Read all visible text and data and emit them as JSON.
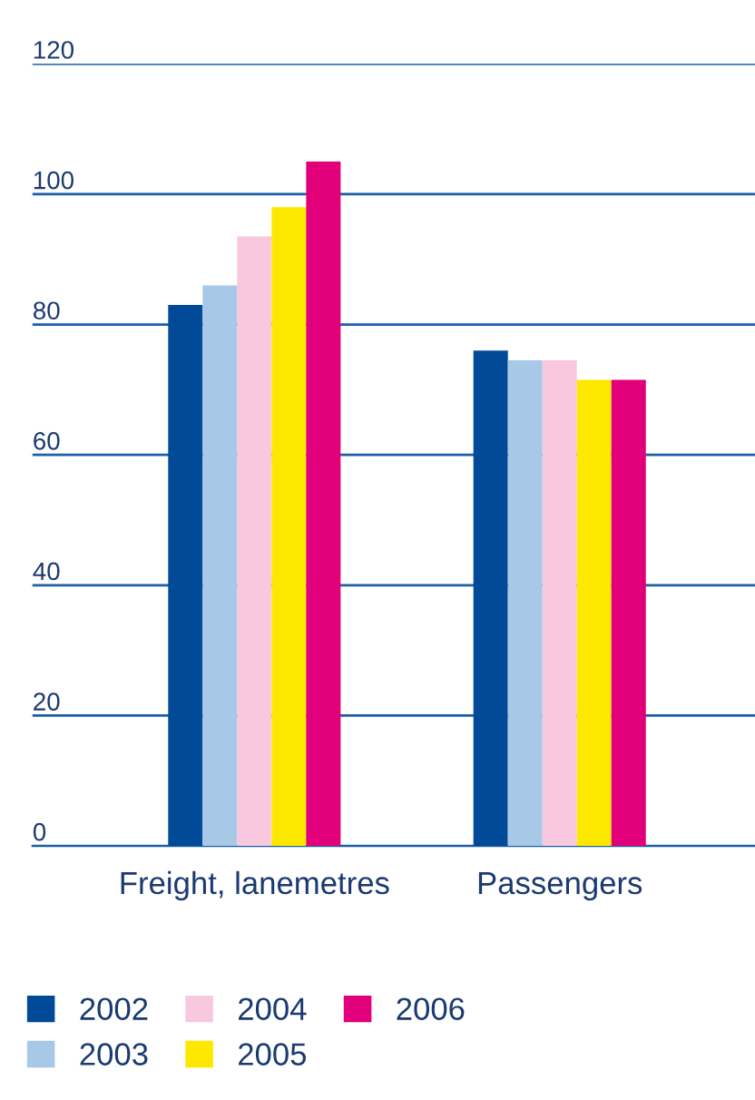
{
  "chart_data": {
    "type": "bar",
    "categories": [
      "Freight, lanemetres",
      "Passengers"
    ],
    "series": [
      {
        "name": "2002",
        "color": "#004a98",
        "values": [
          83,
          76
        ]
      },
      {
        "name": "2003",
        "color": "#a8c8e8",
        "values": [
          86,
          74.5
        ]
      },
      {
        "name": "2004",
        "color": "#f7c8de",
        "values": [
          93.5,
          74.5
        ]
      },
      {
        "name": "2005",
        "color": "#ffe800",
        "values": [
          98,
          71.5
        ]
      },
      {
        "name": "2006",
        "color": "#e2007a",
        "values": [
          105,
          71.5
        ]
      }
    ],
    "ylim": [
      0,
      120
    ],
    "yticks": [
      0,
      20,
      40,
      60,
      80,
      100,
      120
    ],
    "grid": "y",
    "legend": "bottom"
  }
}
